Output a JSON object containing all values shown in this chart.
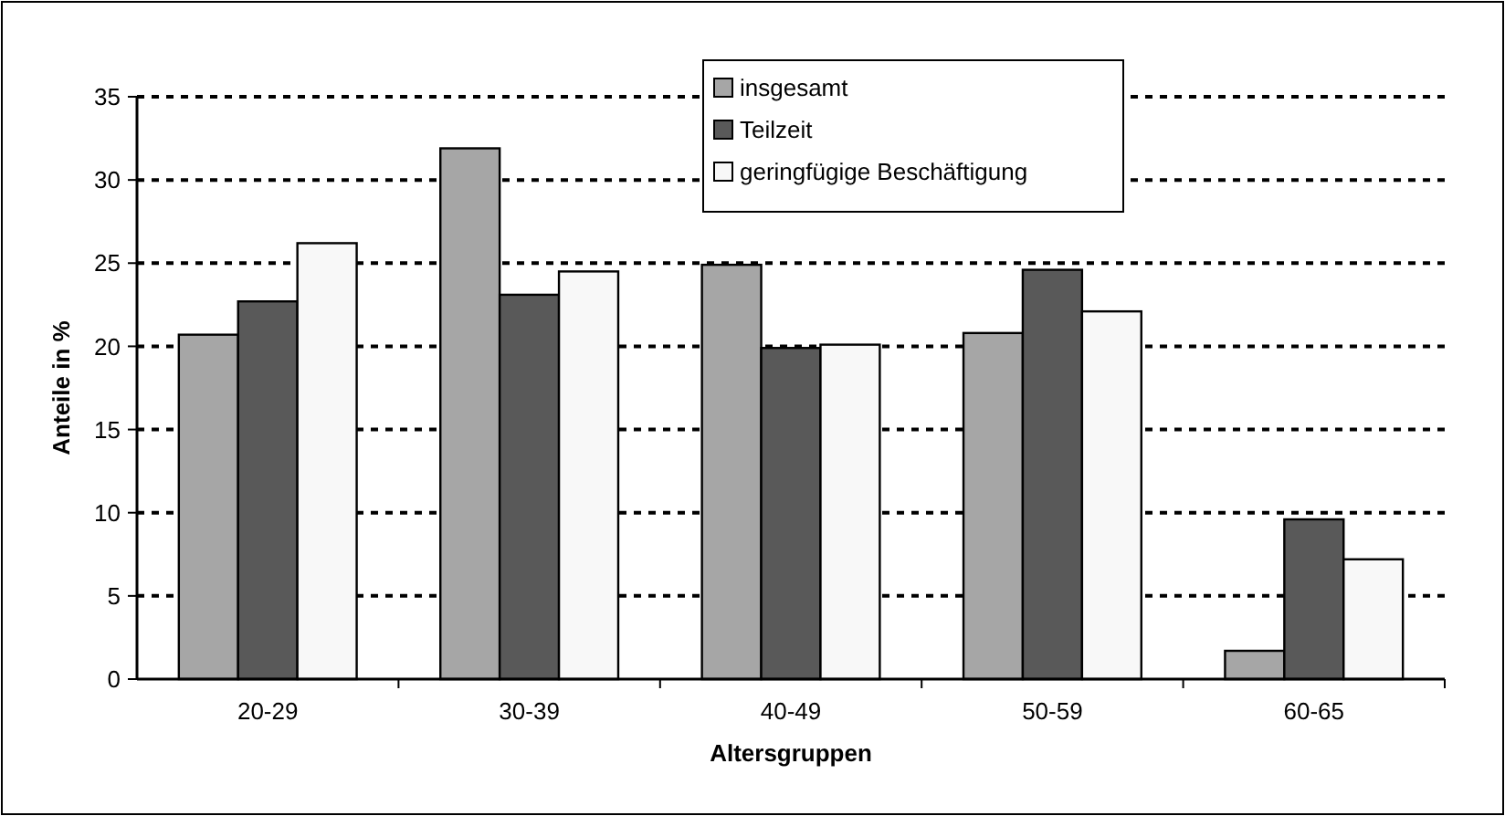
{
  "chart_data": {
    "type": "bar",
    "xlabel": "Altersgruppen",
    "ylabel": "Anteile in %",
    "categories": [
      "20-29",
      "30-39",
      "40-49",
      "50-59",
      "60-65"
    ],
    "series": [
      {
        "name": "insgesamt",
        "color": "#a6a6a6",
        "values": [
          20.7,
          31.9,
          24.9,
          20.8,
          1.7
        ]
      },
      {
        "name": "Teilzeit",
        "color": "#595959",
        "values": [
          22.7,
          23.1,
          19.9,
          24.6,
          9.6
        ]
      },
      {
        "name": "geringfügige Beschäftigung",
        "color": "#f8f8f8",
        "values": [
          26.2,
          24.5,
          20.1,
          22.1,
          7.2
        ]
      }
    ],
    "ylim": [
      0,
      35
    ],
    "yticks": [
      0,
      5,
      10,
      15,
      20,
      25,
      30,
      35
    ],
    "grid": "y",
    "legend": "top right"
  }
}
